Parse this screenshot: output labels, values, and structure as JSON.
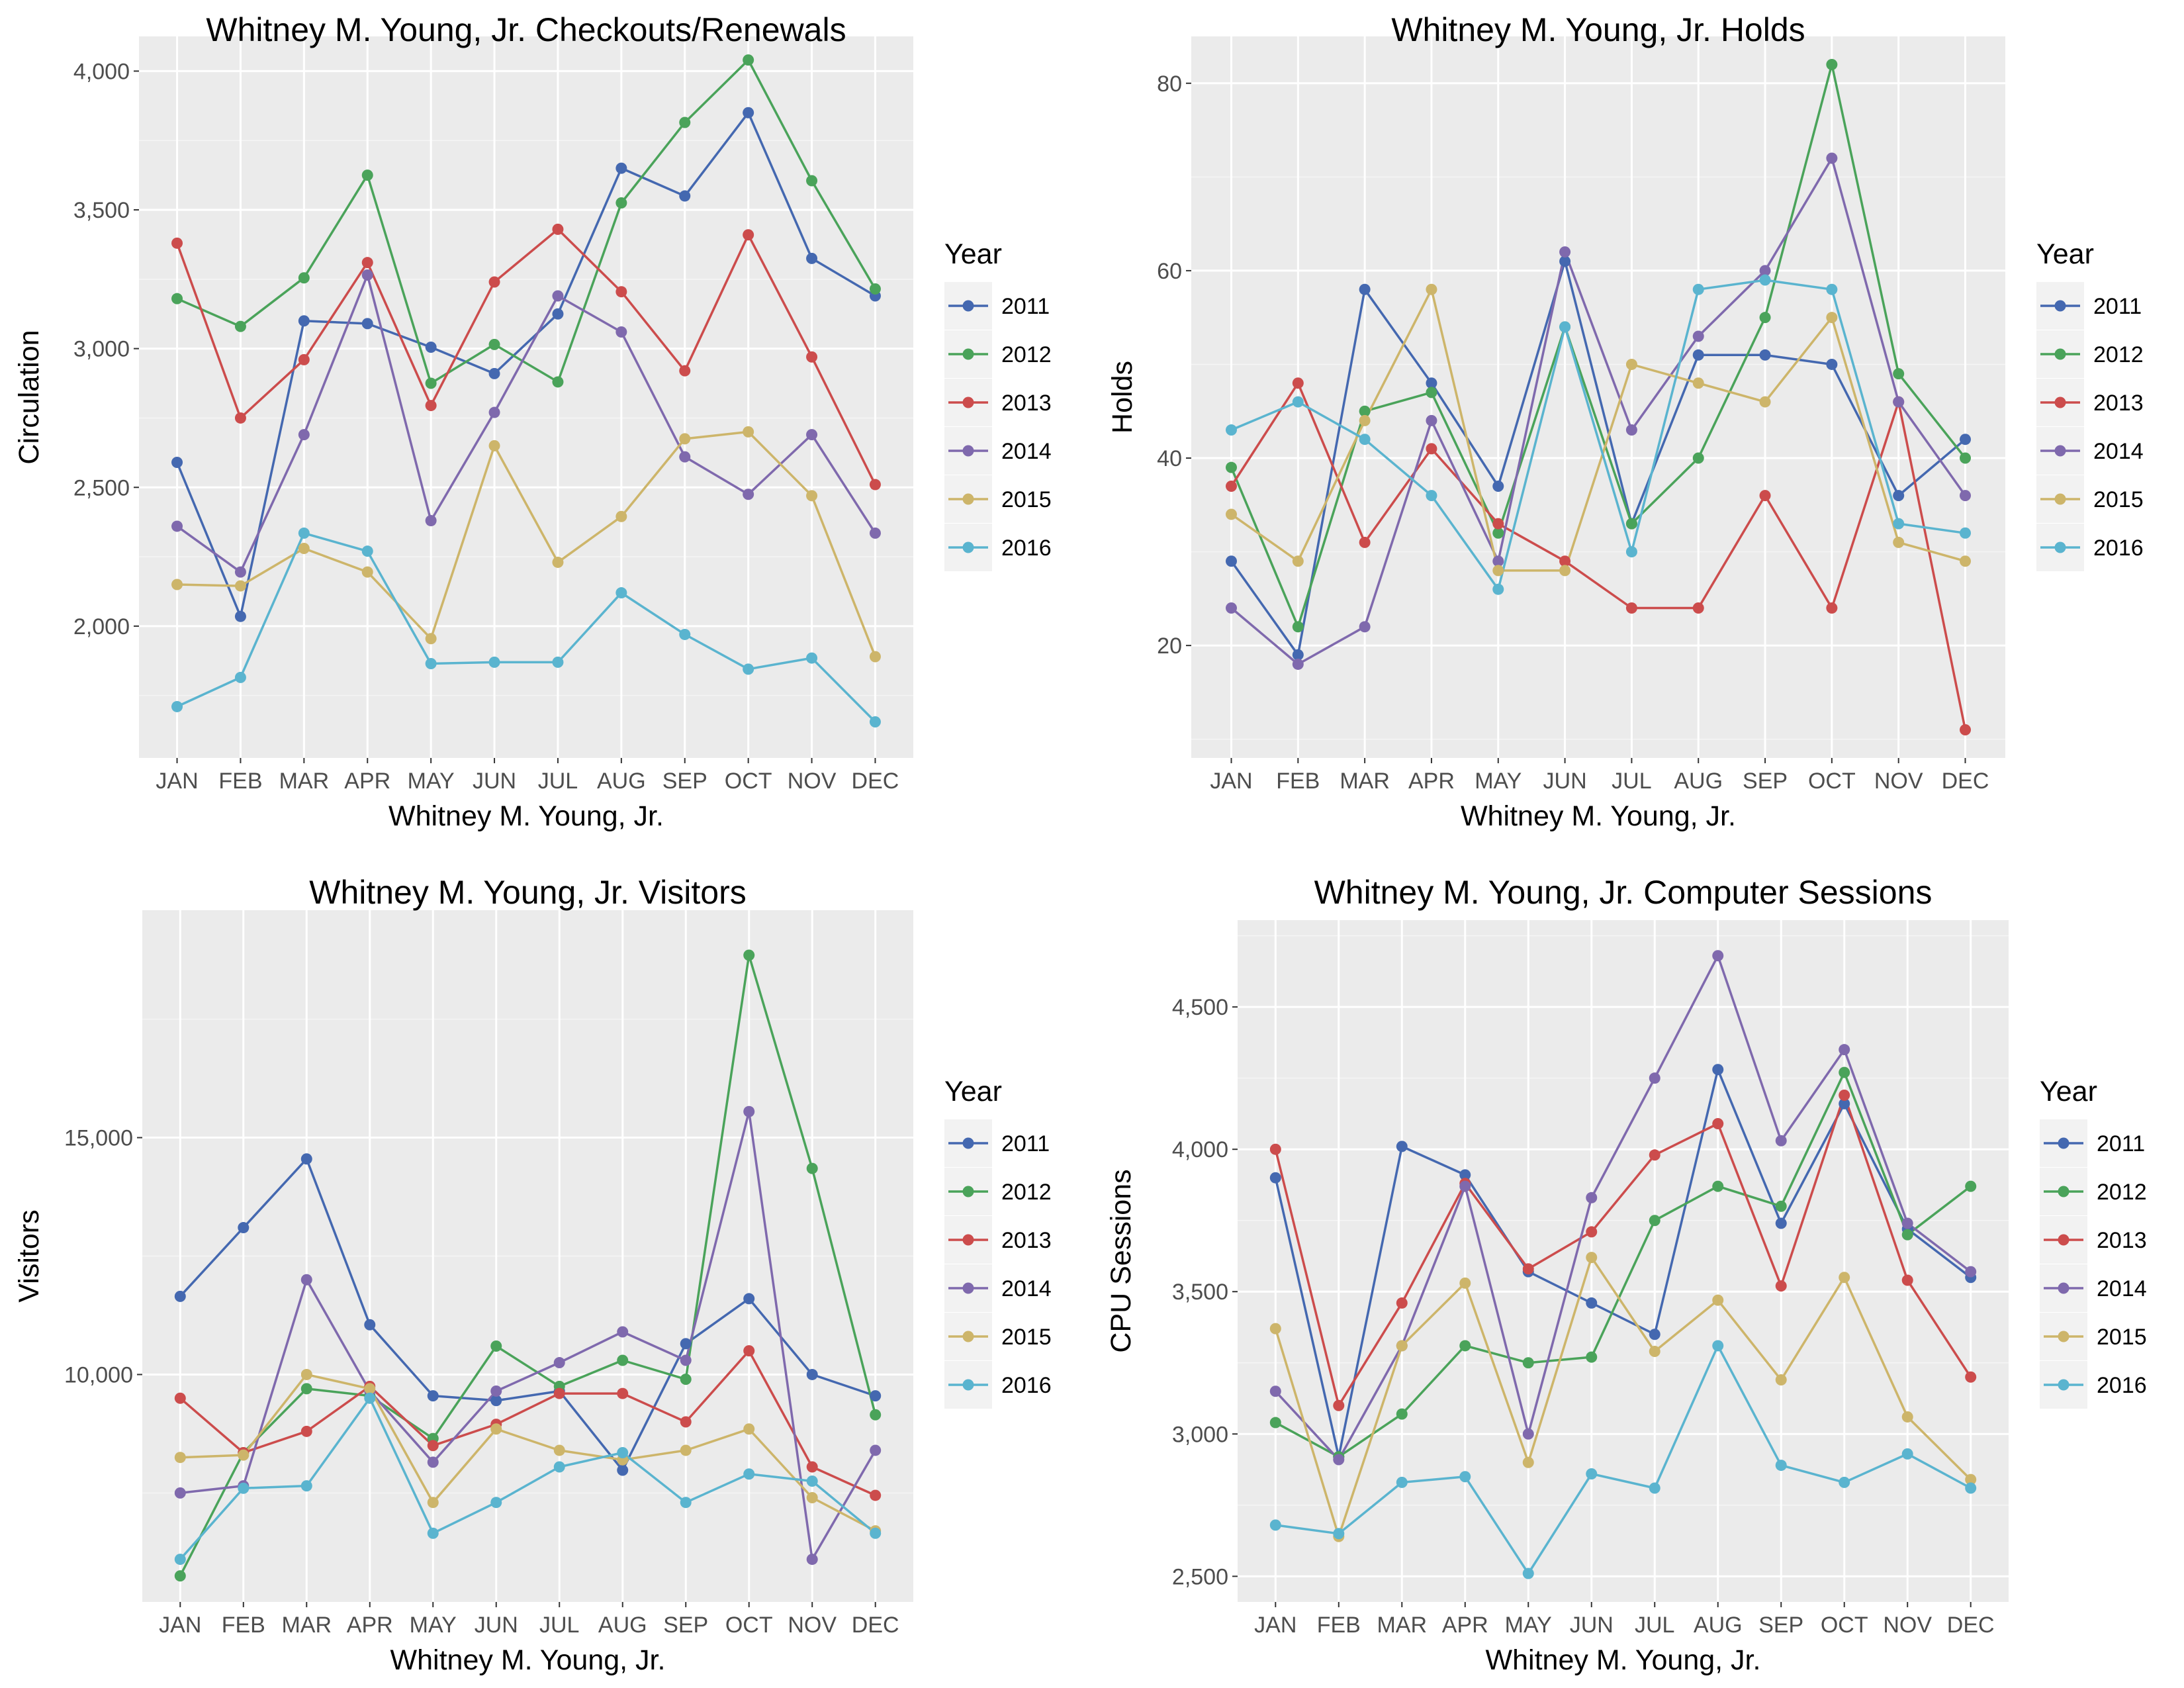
{
  "months": [
    "JAN",
    "FEB",
    "MAR",
    "APR",
    "MAY",
    "JUN",
    "JUL",
    "AUG",
    "SEP",
    "OCT",
    "NOV",
    "DEC"
  ],
  "legend": {
    "title": "Year",
    "years": [
      "2011",
      "2012",
      "2013",
      "2014",
      "2015",
      "2016"
    ],
    "colors": [
      "#4468B0",
      "#4AA35A",
      "#CC4C4C",
      "#7F69AD",
      "#CDB56A",
      "#5AB4CF"
    ]
  },
  "chart_data": [
    {
      "type": "line",
      "title": "Whitney M. Young, Jr. Checkouts/Renewals",
      "xlabel": "Whitney M. Young, Jr.",
      "ylabel": "Circulation",
      "ylim": [
        1525,
        4125
      ],
      "yticks": [
        2000,
        2500,
        3000,
        3500,
        4000
      ],
      "ytick_labels": [
        "2,000",
        "2,500",
        "3,000",
        "3,500",
        "4,000"
      ],
      "grid": true,
      "legend_position": "right",
      "series": [
        {
          "name": "2011",
          "values": [
            2590,
            2035,
            3100,
            3090,
            3005,
            2910,
            3125,
            3650,
            3550,
            3850,
            3325,
            3190
          ]
        },
        {
          "name": "2012",
          "values": [
            3180,
            3080,
            3255,
            3625,
            2875,
            3015,
            2880,
            3525,
            3815,
            4040,
            3605,
            3215
          ]
        },
        {
          "name": "2013",
          "values": [
            3380,
            2750,
            2960,
            3310,
            2795,
            3240,
            3430,
            3205,
            2920,
            3410,
            2970,
            2510
          ]
        },
        {
          "name": "2014",
          "values": [
            2360,
            2195,
            2690,
            3265,
            2380,
            2770,
            3190,
            3060,
            2610,
            2475,
            2690,
            2335
          ]
        },
        {
          "name": "2015",
          "values": [
            2150,
            2145,
            2280,
            2195,
            1955,
            2650,
            2230,
            2395,
            2675,
            2700,
            2470,
            1890
          ]
        },
        {
          "name": "2016",
          "values": [
            1710,
            1815,
            2335,
            2270,
            1865,
            1870,
            1870,
            2120,
            1970,
            1845,
            1885,
            1655
          ]
        }
      ]
    },
    {
      "type": "line",
      "title": "Whitney M. Young, Jr. Holds",
      "xlabel": "Whitney M. Young, Jr.",
      "ylabel": "Holds",
      "ylim": [
        8,
        85
      ],
      "yticks": [
        20,
        40,
        60,
        80
      ],
      "ytick_labels": [
        "20",
        "40",
        "60",
        "80"
      ],
      "grid": true,
      "legend_position": "right",
      "series": [
        {
          "name": "2011",
          "values": [
            29,
            19,
            58,
            48,
            37,
            61,
            33,
            51,
            51,
            50,
            36,
            42
          ]
        },
        {
          "name": "2012",
          "values": [
            39,
            22,
            45,
            47,
            32,
            54,
            33,
            40,
            55,
            82,
            49,
            40
          ]
        },
        {
          "name": "2013",
          "values": [
            37,
            48,
            31,
            41,
            33,
            29,
            24,
            24,
            36,
            24,
            46,
            11
          ]
        },
        {
          "name": "2014",
          "values": [
            24,
            18,
            22,
            44,
            29,
            62,
            43,
            53,
            60,
            72,
            46,
            36
          ]
        },
        {
          "name": "2015",
          "values": [
            34,
            29,
            44,
            58,
            28,
            28,
            50,
            48,
            46,
            55,
            31,
            29
          ]
        },
        {
          "name": "2016",
          "values": [
            43,
            46,
            42,
            36,
            26,
            54,
            30,
            58,
            59,
            58,
            33,
            32
          ]
        }
      ]
    },
    {
      "type": "line",
      "title": "Whitney M. Young, Jr. Visitors",
      "xlabel": "Whitney M. Young, Jr.",
      "ylabel": "Visitors",
      "ylim": [
        5200,
        19800
      ],
      "yticks": [
        10000,
        15000
      ],
      "ytick_labels": [
        "10,000",
        "15,000"
      ],
      "grid": true,
      "legend_position": "right",
      "series": [
        {
          "name": "2011",
          "values": [
            11650,
            13100,
            14550,
            11050,
            9550,
            9450,
            9650,
            7980,
            10650,
            11600,
            10000,
            9550
          ]
        },
        {
          "name": "2012",
          "values": [
            5750,
            8350,
            9700,
            9550,
            8650,
            10600,
            9750,
            10300,
            9900,
            18850,
            14350,
            9150
          ]
        },
        {
          "name": "2013",
          "values": [
            9500,
            8350,
            8800,
            9750,
            8500,
            8950,
            9600,
            9600,
            9000,
            10500,
            8050,
            7450
          ]
        },
        {
          "name": "2014",
          "values": [
            7500,
            7650,
            12000,
            9650,
            8150,
            9650,
            10250,
            10900,
            10300,
            15550,
            6100,
            8400
          ]
        },
        {
          "name": "2015",
          "values": [
            8250,
            8300,
            10000,
            9700,
            7300,
            8850,
            8400,
            8200,
            8400,
            8850,
            7400,
            6700
          ]
        },
        {
          "name": "2016",
          "values": [
            6100,
            7600,
            7650,
            9500,
            6650,
            7300,
            8050,
            8350,
            7300,
            7900,
            7750,
            6650
          ]
        }
      ]
    },
    {
      "type": "line",
      "title": "Whitney M. Young, Jr. Computer Sessions",
      "xlabel": "Whitney M. Young, Jr.",
      "ylabel": "CPU Sessions",
      "ylim": [
        2410,
        4805
      ],
      "yticks": [
        2500,
        3000,
        3500,
        4000,
        4500
      ],
      "ytick_labels": [
        "2,500",
        "3,000",
        "3,500",
        "4,000",
        "4,500"
      ],
      "grid": true,
      "legend_position": "right",
      "series": [
        {
          "name": "2011",
          "values": [
            3900,
            2920,
            4010,
            3910,
            3570,
            3460,
            3350,
            4280,
            3740,
            4160,
            3720,
            3550
          ]
        },
        {
          "name": "2012",
          "values": [
            3040,
            2920,
            3070,
            3310,
            3250,
            3270,
            3750,
            3870,
            3800,
            4270,
            3700,
            3870
          ]
        },
        {
          "name": "2013",
          "values": [
            4000,
            3100,
            3460,
            3880,
            3580,
            3710,
            3980,
            4090,
            3520,
            4190,
            3540,
            3200
          ]
        },
        {
          "name": "2014",
          "values": [
            3150,
            2910,
            3310,
            3870,
            3000,
            3830,
            4250,
            4680,
            4030,
            4350,
            3740,
            3570
          ]
        },
        {
          "name": "2015",
          "values": [
            3370,
            2640,
            3310,
            3530,
            2900,
            3620,
            3290,
            3470,
            3190,
            3550,
            3060,
            2840
          ]
        },
        {
          "name": "2016",
          "values": [
            2680,
            2650,
            2830,
            2850,
            2510,
            2860,
            2810,
            3310,
            2890,
            2830,
            2930,
            2810
          ]
        }
      ]
    }
  ]
}
